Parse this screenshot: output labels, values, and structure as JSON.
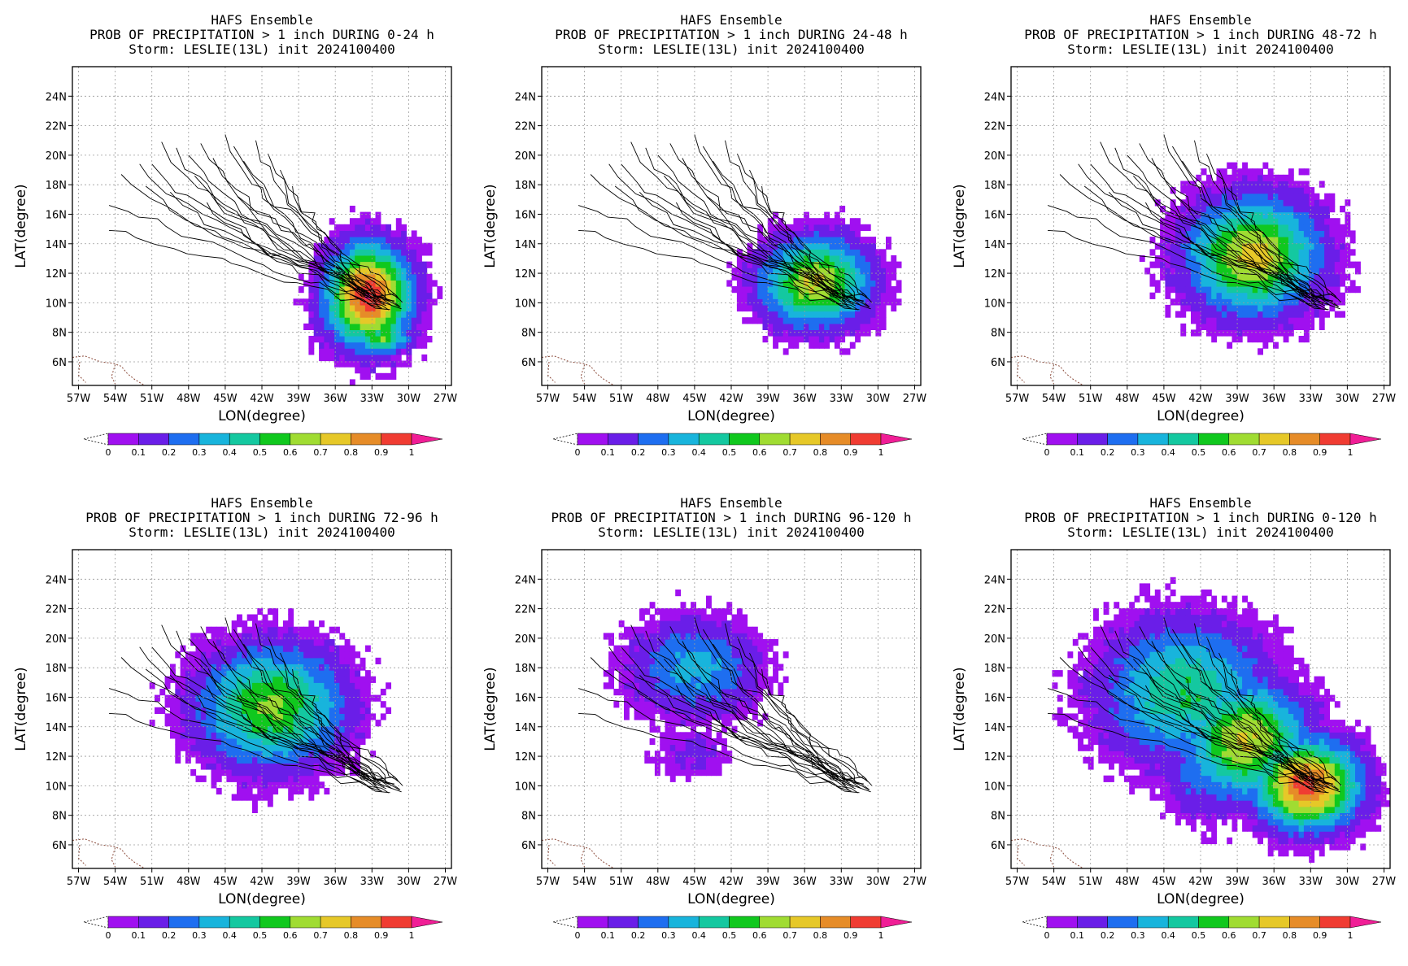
{
  "colorbar": {
    "labels": [
      "0",
      "0.1",
      "0.2",
      "0.3",
      "0.4",
      "0.5",
      "0.6",
      "0.7",
      "0.8",
      "0.9",
      "1"
    ],
    "colors": [
      "#a010f0",
      "#6a1ee8",
      "#1e6ef0",
      "#18b4dc",
      "#14c8a0",
      "#10c81e",
      "#a0dc32",
      "#e6c828",
      "#e68c28",
      "#f03c32"
    ],
    "over_color": "#f01e96"
  },
  "axes": {
    "x_ticks": [
      "57W",
      "54W",
      "51W",
      "48W",
      "45W",
      "42W",
      "39W",
      "36W",
      "33W",
      "30W",
      "27W"
    ],
    "y_ticks": [
      "6N",
      "8N",
      "10N",
      "12N",
      "14N",
      "16N",
      "18N",
      "20N",
      "22N",
      "24N"
    ],
    "xlim": [
      -57.5,
      -26.5
    ],
    "ylim": [
      4.4,
      26.0
    ],
    "xlabel": "LON(degree)",
    "ylabel": "LAT(degree)"
  },
  "chart_data": [
    {
      "type": "heatmap",
      "title_lines": [
        "HAFS Ensemble",
        "PROB OF PRECIPITATION > 1 inch DURING  0-24 h",
        "Storm: LESLIE(13L) init 2024100400"
      ],
      "period": "0-24 h",
      "blobs": [
        {
          "lon": -33.5,
          "lat": 10.3,
          "rx": 4.0,
          "ry": 4.0,
          "peak": 1.0
        },
        {
          "lon": -32.3,
          "lat": 7.4,
          "rx": 2.5,
          "ry": 1.2,
          "peak": 0.6
        }
      ]
    },
    {
      "type": "heatmap",
      "title_lines": [
        "HAFS Ensemble",
        "PROB OF PRECIPITATION > 1 inch DURING 24-48 h",
        "Storm: LESLIE(13L) init 2024100400"
      ],
      "period": "24-48 h",
      "blobs": [
        {
          "lon": -35.3,
          "lat": 11.2,
          "rx": 5.2,
          "ry": 3.5,
          "peak": 0.72
        }
      ]
    },
    {
      "type": "heatmap",
      "title_lines": [
        "HAFS Ensemble",
        "PROB OF PRECIPITATION > 1 inch DURING 48-72 h",
        "Storm: LESLIE(13L) init 2024100400"
      ],
      "period": "48-72 h",
      "blobs": [
        {
          "lon": -37.9,
          "lat": 13.0,
          "rx": 6.3,
          "ry": 4.6,
          "peak": 0.74
        },
        {
          "lon": -36.4,
          "lat": 8.8,
          "rx": 1.8,
          "ry": 1.8,
          "peak": 0.12
        },
        {
          "lon": -44.8,
          "lat": 8.3,
          "rx": 1.3,
          "ry": 0.3,
          "peak": 0.06
        }
      ]
    },
    {
      "type": "heatmap",
      "title_lines": [
        "HAFS Ensemble",
        "PROB OF PRECIPITATION > 1 inch DURING 72-96 h",
        "Storm: LESLIE(13L) init 2024100400"
      ],
      "period": "72-96 h",
      "blobs": [
        {
          "lon": -41.4,
          "lat": 15.2,
          "rx": 7.0,
          "ry": 4.7,
          "peak": 0.62
        },
        {
          "lon": -42.5,
          "lat": 10.3,
          "rx": 3.5,
          "ry": 2.2,
          "peak": 0.1
        }
      ]
    },
    {
      "type": "heatmap",
      "title_lines": [
        "HAFS Ensemble",
        "PROB OF PRECIPITATION > 1 inch DURING 96-120 h",
        "Storm: LESLIE(13L) init 2024100400"
      ],
      "period": "96-120 h",
      "blobs": [
        {
          "lon": -45.2,
          "lat": 17.8,
          "rx": 6.2,
          "ry": 3.9,
          "peak": 0.34
        },
        {
          "lon": -45.5,
          "lat": 12.0,
          "rx": 4.0,
          "ry": 2.4,
          "peak": 0.12
        }
      ]
    },
    {
      "type": "heatmap",
      "title_lines": [
        "HAFS Ensemble",
        "PROB OF PRECIPITATION > 1 inch DURING 0-120 h",
        "Storm: LESLIE(13L) init 2024100400"
      ],
      "period": "0-120 h",
      "blobs": [
        {
          "lon": -33.5,
          "lat": 9.9,
          "rx": 5.0,
          "ry": 3.5,
          "peak": 0.95
        },
        {
          "lon": -38.5,
          "lat": 12.9,
          "rx": 5.8,
          "ry": 4.6,
          "peak": 0.72
        },
        {
          "lon": -43.5,
          "lat": 16.2,
          "rx": 8.0,
          "ry": 5.5,
          "peak": 0.5
        },
        {
          "lon": -41.0,
          "lat": 11.0,
          "rx": 5.2,
          "ry": 4.0,
          "peak": 0.3
        }
      ]
    }
  ]
}
